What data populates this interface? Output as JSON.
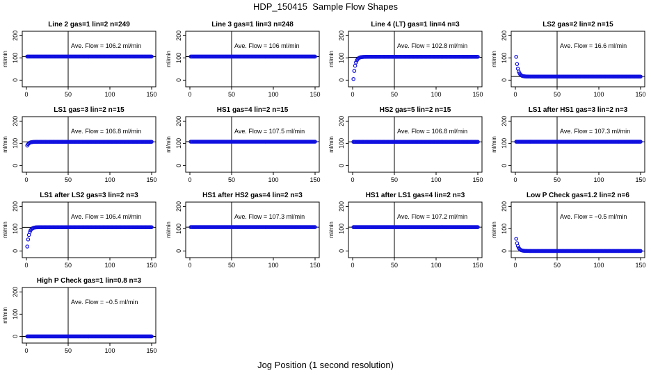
{
  "page": {
    "title": "HDP_150415  Sample Flow Shapes",
    "x_axis_title": "Jog Position (1 second resolution)"
  },
  "colors": {
    "points": "#1010e0",
    "axes": "#000000"
  },
  "chart_data": [
    {
      "type": "scatter",
      "title": "Line 2 gas=1 lin=2 n=249",
      "annotation": "Ave. Flow =  106.2  ml/min",
      "ylabel": "ml/min",
      "xlim": [
        0,
        150
      ],
      "ylim": [
        -30,
        220
      ],
      "xticks": [
        0,
        50,
        100,
        150
      ],
      "yticks": [
        0,
        100,
        200
      ],
      "vline": 50,
      "hline": 106.2,
      "steady": 106.2,
      "shape": "flat",
      "start": 106.2
    },
    {
      "type": "scatter",
      "title": "Line 3 gas=1 lin=3 n=248",
      "annotation": "Ave. Flow =  106  ml/min",
      "ylabel": "ml/min",
      "xlim": [
        0,
        150
      ],
      "ylim": [
        -30,
        220
      ],
      "xticks": [
        0,
        50,
        100,
        150
      ],
      "yticks": [
        0,
        100,
        200
      ],
      "vline": 50,
      "hline": 106,
      "steady": 106,
      "shape": "flat",
      "start": 106
    },
    {
      "type": "scatter",
      "title": "Line 4 (LT) gas=1 lin=4 n=3",
      "annotation": "Ave. Flow =  102.8  ml/min",
      "ylabel": "ml/min",
      "xlim": [
        0,
        150
      ],
      "ylim": [
        -30,
        220
      ],
      "xticks": [
        0,
        50,
        100,
        150
      ],
      "yticks": [
        0,
        100,
        200
      ],
      "vline": 50,
      "hline": 102.8,
      "steady": 105,
      "shape": "rise",
      "start": 5
    },
    {
      "type": "scatter",
      "title": "LS2 gas=2 lin=2 n=15",
      "annotation": "Ave. Flow =  16.6  ml/min",
      "ylabel": "ml/min",
      "xlim": [
        0,
        150
      ],
      "ylim": [
        -30,
        220
      ],
      "xticks": [
        0,
        50,
        100,
        150
      ],
      "yticks": [
        0,
        100,
        200
      ],
      "vline": 50,
      "hline": 16.6,
      "steady": 16,
      "shape": "fall",
      "start": 105
    },
    {
      "type": "scatter",
      "title": "LS1 gas=3 lin=2 n=15",
      "annotation": "Ave. Flow =  106.8  ml/min",
      "ylabel": "ml/min",
      "xlim": [
        0,
        150
      ],
      "ylim": [
        -30,
        220
      ],
      "xticks": [
        0,
        50,
        100,
        150
      ],
      "yticks": [
        0,
        100,
        200
      ],
      "vline": 50,
      "hline": 106.8,
      "steady": 107,
      "shape": "rise",
      "start": 90
    },
    {
      "type": "scatter",
      "title": "HS1 gas=4 lin=2 n=15",
      "annotation": "Ave. Flow =  107.5  ml/min",
      "ylabel": "ml/min",
      "xlim": [
        0,
        150
      ],
      "ylim": [
        -30,
        220
      ],
      "xticks": [
        0,
        50,
        100,
        150
      ],
      "yticks": [
        0,
        100,
        200
      ],
      "vline": 50,
      "hline": 107.5,
      "steady": 107.5,
      "shape": "flat",
      "start": 107.5
    },
    {
      "type": "scatter",
      "title": "HS2 gas=5 lin=2 n=15",
      "annotation": "Ave. Flow =  106.8  ml/min",
      "ylabel": "ml/min",
      "xlim": [
        0,
        150
      ],
      "ylim": [
        -30,
        220
      ],
      "xticks": [
        0,
        50,
        100,
        150
      ],
      "yticks": [
        0,
        100,
        200
      ],
      "vline": 50,
      "hline": 106.8,
      "steady": 106.8,
      "shape": "flat",
      "start": 106.8
    },
    {
      "type": "scatter",
      "title": "LS1 after HS1 gas=3 lin=2 n=3",
      "annotation": "Ave. Flow =  107.3  ml/min",
      "ylabel": "ml/min",
      "xlim": [
        0,
        150
      ],
      "ylim": [
        -30,
        220
      ],
      "xticks": [
        0,
        50,
        100,
        150
      ],
      "yticks": [
        0,
        100,
        200
      ],
      "vline": 50,
      "hline": 107.3,
      "steady": 107.3,
      "shape": "flat",
      "start": 107.3
    },
    {
      "type": "scatter",
      "title": "LS1 after LS2 gas=3 lin=2 n=3",
      "annotation": "Ave. Flow =  106.4  ml/min",
      "ylabel": "ml/min",
      "xlim": [
        0,
        150
      ],
      "ylim": [
        -30,
        220
      ],
      "xticks": [
        0,
        50,
        100,
        150
      ],
      "yticks": [
        0,
        100,
        200
      ],
      "vline": 50,
      "hline": 106.4,
      "steady": 107,
      "shape": "rise",
      "start": 20
    },
    {
      "type": "scatter",
      "title": "HS1 after HS2 gas=4 lin=2 n=3",
      "annotation": "Ave. Flow =  107.3  ml/min",
      "ylabel": "ml/min",
      "xlim": [
        0,
        150
      ],
      "ylim": [
        -30,
        220
      ],
      "xticks": [
        0,
        50,
        100,
        150
      ],
      "yticks": [
        0,
        100,
        200
      ],
      "vline": 50,
      "hline": 107.3,
      "steady": 107.3,
      "shape": "flat",
      "start": 107.3
    },
    {
      "type": "scatter",
      "title": "HS1 after LS1 gas=4 lin=2 n=3",
      "annotation": "Ave. Flow =  107.2  ml/min",
      "ylabel": "ml/min",
      "xlim": [
        0,
        150
      ],
      "ylim": [
        -30,
        220
      ],
      "xticks": [
        0,
        50,
        100,
        150
      ],
      "yticks": [
        0,
        100,
        200
      ],
      "vline": 50,
      "hline": 107.2,
      "steady": 107.2,
      "shape": "flat",
      "start": 107.2
    },
    {
      "type": "scatter",
      "title": "Low P Check gas=1.2 lin=2 n=6",
      "annotation": "Ave. Flow =  −0.5  ml/min",
      "ylabel": "ml/min",
      "xlim": [
        0,
        150
      ],
      "ylim": [
        -30,
        220
      ],
      "xticks": [
        0,
        50,
        100,
        150
      ],
      "yticks": [
        0,
        100,
        200
      ],
      "vline": 50,
      "hline": -0.5,
      "steady": 0,
      "shape": "fall",
      "start": 55
    },
    {
      "type": "scatter",
      "title": "High P Check gas=1 lin=0.8 n=3",
      "annotation": "Ave. Flow =  −0.5  ml/min",
      "ylabel": "ml/min",
      "xlim": [
        0,
        150
      ],
      "ylim": [
        -30,
        220
      ],
      "xticks": [
        0,
        50,
        100,
        150
      ],
      "yticks": [
        0,
        100,
        200
      ],
      "vline": 50,
      "hline": -0.5,
      "steady": 0,
      "shape": "flat",
      "start": 0
    }
  ]
}
